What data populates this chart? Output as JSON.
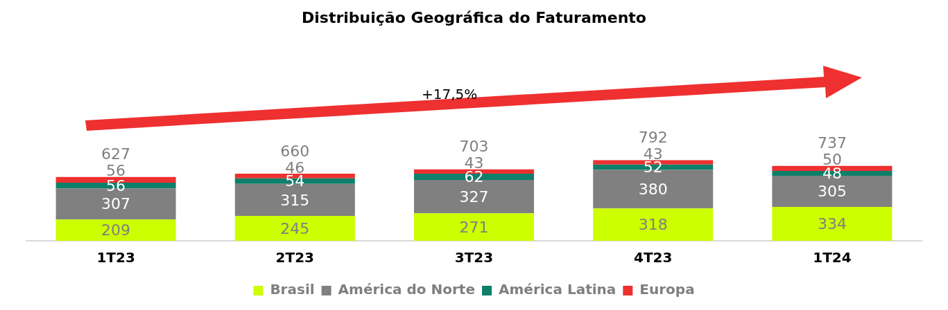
{
  "chart_data": {
    "type": "bar",
    "title": "Distribuição Geográfica do Faturamento",
    "categories": [
      "1T23",
      "2T23",
      "3T23",
      "4T23",
      "1T24"
    ],
    "stacked": true,
    "tick_labels": "x",
    "grid": false,
    "legend": "bottom",
    "data_labels": true,
    "series": [
      {
        "name": "Brasil",
        "color": "#ccff00",
        "values": [
          209,
          245,
          271,
          318,
          334
        ]
      },
      {
        "name": "América do Norte",
        "color": "#808080",
        "values": [
          307,
          315,
          327,
          380,
          305
        ]
      },
      {
        "name": "América Latina",
        "color": "#0e7f6a",
        "values": [
          56,
          54,
          62,
          52,
          48
        ]
      },
      {
        "name": "Europa",
        "color": "#ee3030",
        "values": [
          56,
          46,
          43,
          43,
          50
        ]
      }
    ],
    "totals": [
      "627",
      "660",
      "703",
      "792",
      "737"
    ],
    "annotations": [
      "+17,5%"
    ]
  }
}
